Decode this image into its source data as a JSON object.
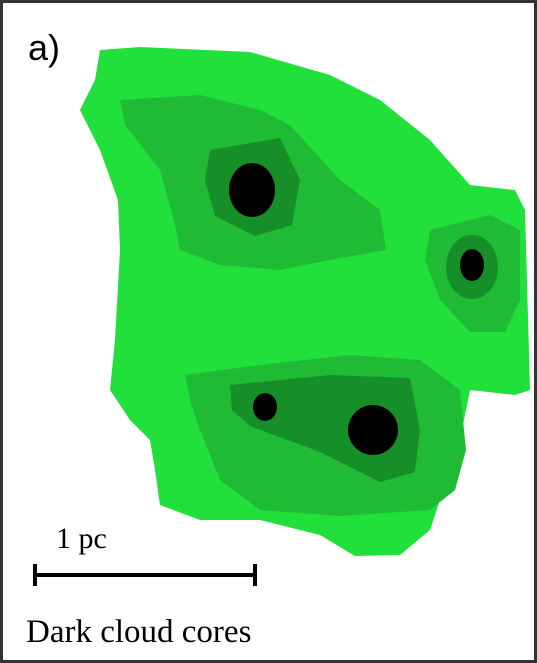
{
  "panel_label": "a)",
  "scale_bar": {
    "label": "1 pc"
  },
  "caption": "Dark cloud cores"
}
